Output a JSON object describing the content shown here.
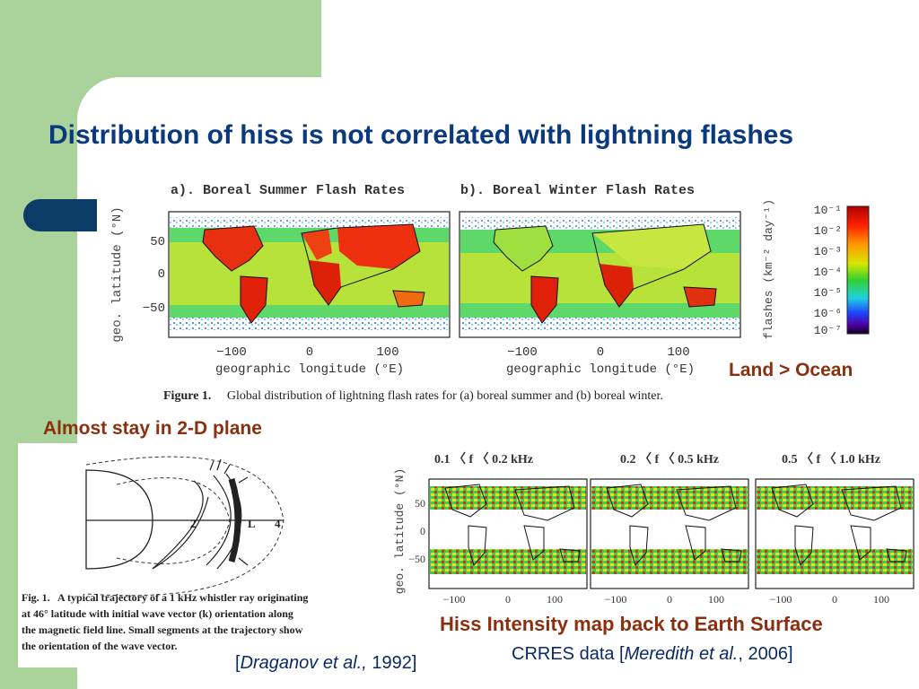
{
  "slide": {
    "title": "Distribution of hiss is not correlated with lightning flashes",
    "colors": {
      "green_block": "#a9d39a",
      "title": "#0a3a7d",
      "annotation": "#8b2f0f",
      "citation": "#0a2a66",
      "tab": "#0b3c67"
    }
  },
  "flash_figure": {
    "panel_a_title": "a). Boreal Summer Flash Rates",
    "panel_b_title": "b). Boreal Winter Flash Rates",
    "ylabel": "geo. latitude (°N)",
    "xlabel": "geographic longitude (°E)",
    "yticks": [
      "50",
      "0",
      "−50"
    ],
    "xticks": [
      "−100",
      "0",
      "100"
    ],
    "colorbar_label": "flashes (km⁻² day⁻¹)",
    "colorbar_ticks": [
      "10⁻¹",
      "10⁻²",
      "10⁻³",
      "10⁻⁴",
      "10⁻⁵",
      "10⁻⁶",
      "10⁻⁷"
    ],
    "caption_label": "Figure 1.",
    "caption_text": "Global distribution of lightning flash rates for (a) boreal summer and (b) boreal winter."
  },
  "annotations": {
    "land_ocean": "Land > Ocean",
    "plane": "Almost stay in 2-D plane",
    "hiss_map": "Hiss Intensity map back to Earth Surface"
  },
  "ray_figure": {
    "label_2": "2",
    "label_L": "L",
    "label_4": "4",
    "caption_label": "Fig. 1.",
    "caption_lines": [
      "A typical trajectory of a 1 kHz whistler ray originating",
      "at 46° latitude with initial wave vector (k) orientation along",
      "the magnetic field line. Small segments at the trajectory show",
      "the orientation of the wave vector."
    ],
    "citation_open": "[",
    "citation_author": "Draganov et al.,",
    "citation_year": " 1992]"
  },
  "hiss_figure": {
    "panel_titles": [
      "0.1 〈 f 〈 0.2 kHz",
      "0.2 〈 f 〈 0.5 kHz",
      "0.5 〈 f 〈 1.0 kHz"
    ],
    "ylabel": "geo. latitude (°N)",
    "yticks": [
      "50",
      "0",
      "−50"
    ],
    "xticks": [
      "−100",
      "0",
      "100"
    ],
    "citation_prefix": "CRRES data [",
    "citation_author": "Meredith et al.",
    "citation_year": ", 2006]"
  }
}
